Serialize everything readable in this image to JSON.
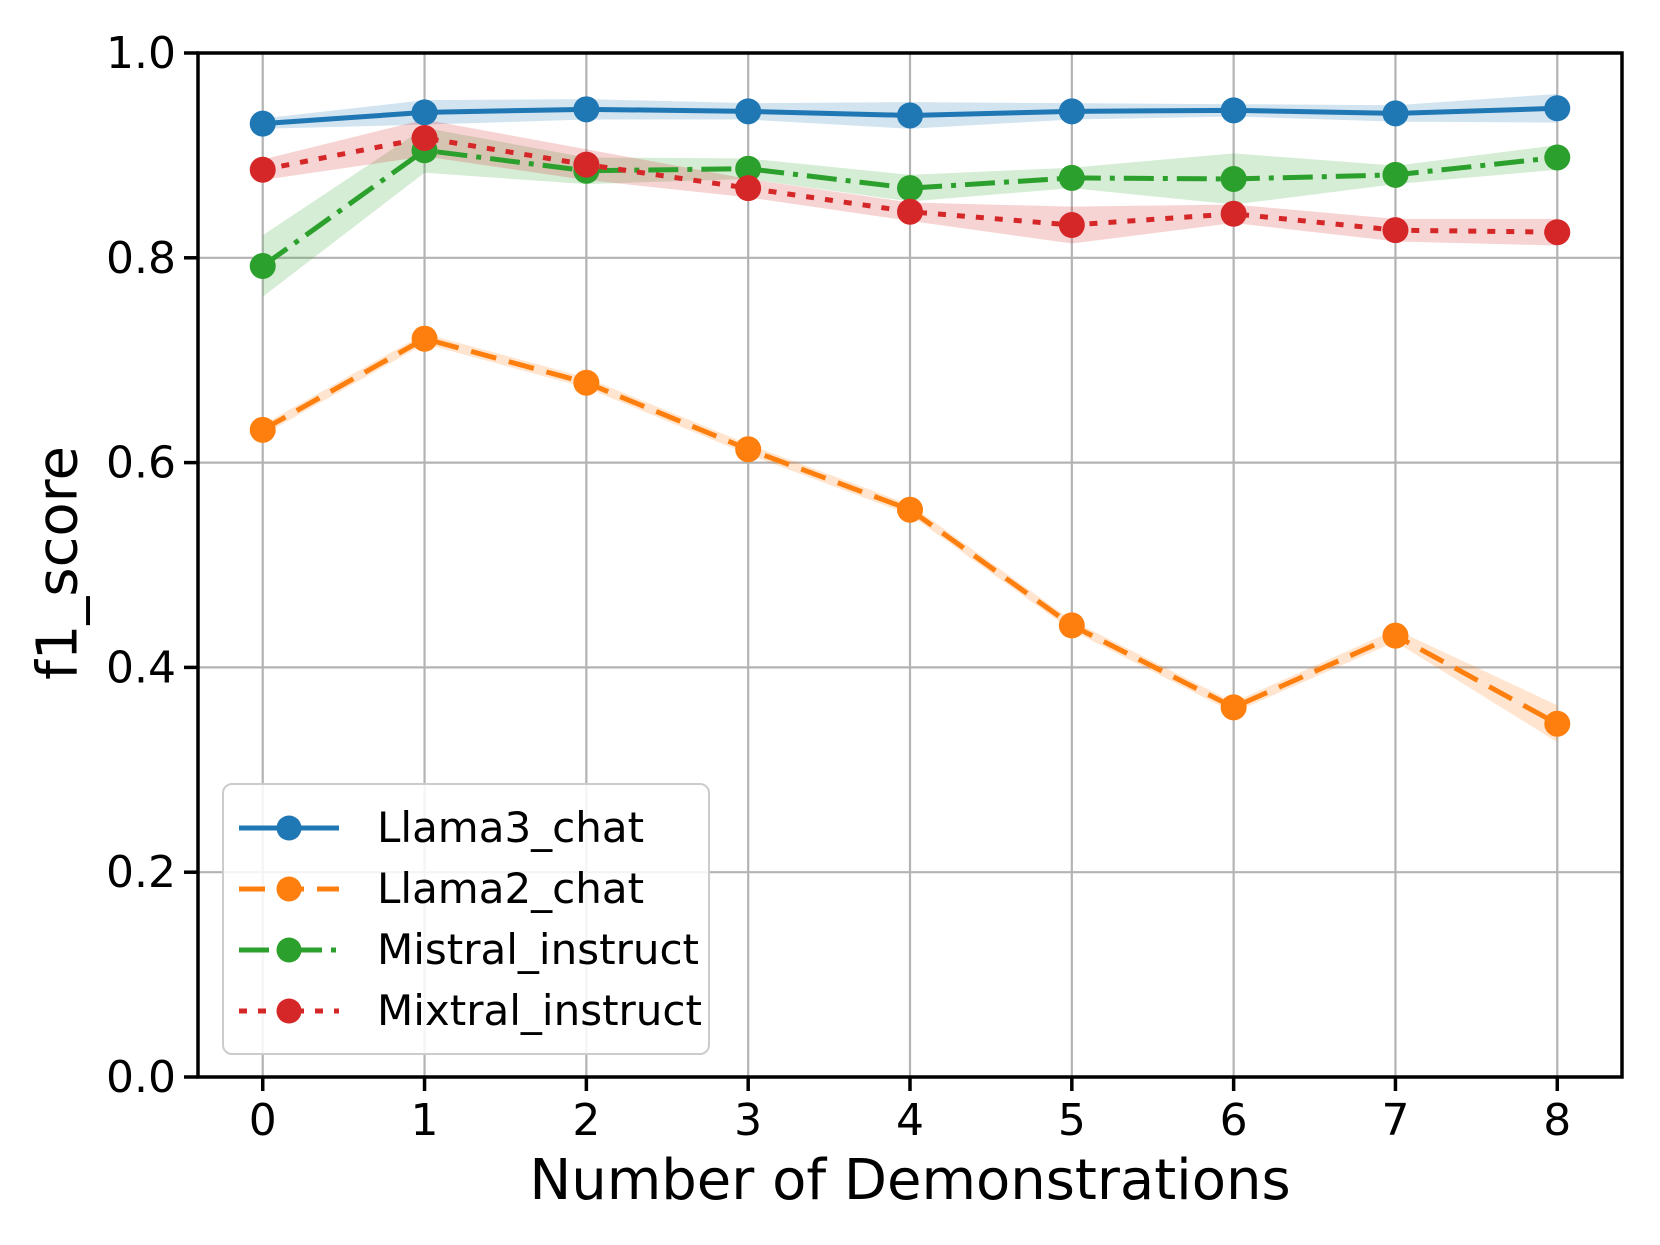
{
  "chart_data": {
    "type": "line",
    "title": "",
    "xlabel": "Number of Demonstrations",
    "ylabel": "f1_score",
    "x": [
      0,
      1,
      2,
      3,
      4,
      5,
      6,
      7,
      8
    ],
    "xlim": [
      -0.4,
      8.4
    ],
    "ylim": [
      0,
      1
    ],
    "grid": true,
    "grid_color": "#b3b3b3",
    "band_alpha": 0.2,
    "legend_position": "lower left",
    "xticks": [
      {
        "value": 0,
        "label": "0"
      },
      {
        "value": 1,
        "label": "1"
      },
      {
        "value": 2,
        "label": "2"
      },
      {
        "value": 3,
        "label": "3"
      },
      {
        "value": 4,
        "label": "4"
      },
      {
        "value": 5,
        "label": "5"
      },
      {
        "value": 6,
        "label": "6"
      },
      {
        "value": 7,
        "label": "7"
      },
      {
        "value": 8,
        "label": "8"
      }
    ],
    "yticks": [
      {
        "value": 0.0,
        "label": "0.0"
      },
      {
        "value": 0.2,
        "label": "0.2"
      },
      {
        "value": 0.4,
        "label": "0.4"
      },
      {
        "value": 0.6,
        "label": "0.6"
      },
      {
        "value": 0.8,
        "label": "0.8"
      },
      {
        "value": 1.0,
        "label": "1.0"
      }
    ],
    "series": [
      {
        "name": "Llama3_chat",
        "color": "#1f77b4",
        "linestyle": "solid",
        "marker": "circle",
        "values": [
          0.931,
          0.942,
          0.945,
          0.943,
          0.939,
          0.943,
          0.944,
          0.941,
          0.946
        ],
        "band": [
          0.005,
          0.012,
          0.01,
          0.008,
          0.013,
          0.008,
          0.006,
          0.008,
          0.014
        ]
      },
      {
        "name": "Llama2_chat",
        "color": "#ff7f0e",
        "linestyle": "dashed",
        "marker": "circle",
        "values": [
          0.632,
          0.721,
          0.678,
          0.613,
          0.554,
          0.441,
          0.361,
          0.431,
          0.345
        ],
        "band": [
          0.005,
          0.005,
          0.005,
          0.005,
          0.005,
          0.005,
          0.005,
          0.006,
          0.018
        ]
      },
      {
        "name": "Mistral_instruct",
        "color": "#2ca02c",
        "linestyle": "dashdot",
        "marker": "circle",
        "values": [
          0.792,
          0.905,
          0.885,
          0.887,
          0.868,
          0.878,
          0.877,
          0.881,
          0.898
        ],
        "band": [
          0.03,
          0.022,
          0.013,
          0.01,
          0.013,
          0.01,
          0.025,
          0.009,
          0.012
        ]
      },
      {
        "name": "Mixtral_instruct",
        "color": "#d62728",
        "linestyle": "dotted",
        "marker": "circle",
        "values": [
          0.886,
          0.917,
          0.891,
          0.868,
          0.845,
          0.832,
          0.843,
          0.827,
          0.825
        ],
        "band": [
          0.01,
          0.018,
          0.015,
          0.009,
          0.009,
          0.018,
          0.009,
          0.011,
          0.013
        ]
      }
    ]
  }
}
